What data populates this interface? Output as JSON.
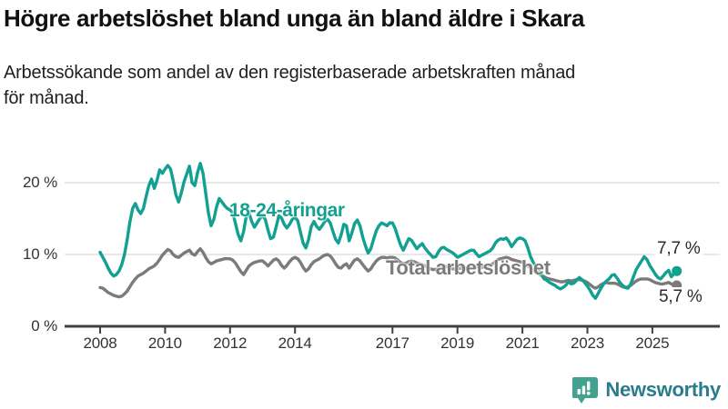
{
  "header": {
    "title": "Högre arbetslöshet bland unga än bland äldre i Skara",
    "subtitle_line1": "Arbetssökande som andel av den registerbaserade arbetskraften månad",
    "subtitle_line2": "för månad."
  },
  "footer": {
    "brand": "Newsworthy",
    "icon": "bar-chart-speech-bubble-icon",
    "icon_color": "#43a18f",
    "text_color": "#2a7b8c"
  },
  "colors": {
    "young_line": "#12a190",
    "total_line": "#7b7b7b",
    "gridline": "#d9d9d9",
    "axis": "#404040",
    "tick_text": "#333333"
  },
  "chart_data": {
    "type": "line",
    "unit": "%",
    "frequency": "monthly",
    "x_start_year": 2008,
    "x_end_label": "Oct 2025",
    "ylim": [
      0,
      24
    ],
    "grid": "horizontal",
    "legend_position": "inline-labels",
    "y_ticks": [
      {
        "value": 0,
        "label": "0 %"
      },
      {
        "value": 10,
        "label": "10 %"
      },
      {
        "value": 20,
        "label": "20 %"
      }
    ],
    "x_ticks": [
      {
        "year": 2008,
        "label": "2008"
      },
      {
        "year": 2010,
        "label": "2010"
      },
      {
        "year": 2012,
        "label": "2012"
      },
      {
        "year": 2014,
        "label": "2014"
      },
      {
        "year": 2017,
        "label": "2017"
      },
      {
        "year": 2019,
        "label": "2019"
      },
      {
        "year": 2021,
        "label": "2021"
      },
      {
        "year": 2023,
        "label": "2023"
      },
      {
        "year": 2025,
        "label": "2025"
      }
    ],
    "series": [
      {
        "name": "18-24-åringar",
        "color": "#12a190",
        "end_label": "7,7 %",
        "end_value": 7.7,
        "values": [
          10.3,
          9.6,
          8.9,
          8.1,
          7.4,
          7.0,
          7.2,
          7.7,
          8.6,
          10.0,
          12.0,
          14.5,
          16.4,
          17.1,
          16.2,
          15.7,
          16.4,
          18.1,
          19.6,
          20.5,
          19.2,
          20.3,
          21.8,
          21.3,
          21.9,
          22.4,
          21.9,
          20.3,
          18.3,
          17.3,
          18.6,
          20.1,
          21.2,
          22.3,
          20.0,
          19.6,
          21.4,
          22.7,
          21.3,
          18.6,
          15.8,
          14.0,
          14.9,
          16.6,
          17.8,
          17.3,
          16.8,
          16.4,
          16.2,
          15.8,
          14.3,
          12.8,
          11.9,
          13.2,
          15.3,
          15.8,
          14.6,
          13.8,
          14.4,
          15.0,
          15.4,
          14.9,
          13.4,
          12.2,
          12.4,
          13.8,
          15.4,
          15.1,
          14.2,
          13.7,
          14.2,
          14.9,
          15.2,
          14.7,
          13.1,
          11.6,
          10.9,
          12.1,
          13.9,
          14.6,
          13.9,
          13.5,
          14.0,
          14.6,
          14.9,
          14.4,
          13.2,
          12.1,
          11.6,
          12.7,
          14.2,
          14.0,
          11.9,
          13.0,
          14.3,
          14.8,
          14.0,
          12.4,
          11.2,
          10.2,
          10.8,
          12.1,
          13.3,
          14.0,
          14.4,
          14.2,
          14.0,
          14.4,
          14.4,
          13.6,
          12.4,
          11.3,
          10.6,
          11.4,
          12.2,
          12.0,
          11.4,
          10.8,
          11.2,
          11.5,
          10.9,
          10.4,
          10.0,
          9.6,
          9.7,
          10.4,
          10.9,
          11.0,
          10.7,
          10.5,
          10.3,
          10.0,
          9.6,
          9.8,
          10.0,
          10.2,
          10.4,
          10.6,
          10.6,
          10.1,
          9.7,
          9.9,
          10.1,
          10.3,
          10.5,
          10.9,
          11.6,
          12.0,
          12.2,
          12.1,
          12.3,
          11.8,
          11.1,
          11.6,
          12.1,
          12.3,
          12.2,
          11.9,
          10.9,
          9.7,
          8.9,
          8.3,
          7.8,
          7.2,
          6.6,
          6.4,
          6.1,
          5.9,
          5.7,
          5.4,
          5.2,
          5.4,
          5.7,
          6.2,
          5.9,
          6.0,
          6.4,
          6.8,
          6.5,
          6.1,
          5.6,
          5.0,
          4.3,
          3.9,
          4.6,
          5.3,
          5.9,
          6.3,
          6.6,
          7.1,
          7.2,
          6.7,
          6.1,
          5.7,
          5.4,
          5.3,
          5.9,
          6.9,
          7.9,
          8.5,
          9.1,
          9.7,
          9.3,
          8.5,
          7.9,
          7.3,
          6.8,
          6.6,
          7.0,
          7.5,
          7.8,
          6.9,
          7.3,
          7.7
        ]
      },
      {
        "name": "Total arbetslöshet",
        "color": "#7b7b7b",
        "end_label": "5,7 %",
        "end_value": 5.7,
        "values": [
          5.4,
          5.3,
          5.0,
          4.7,
          4.5,
          4.3,
          4.2,
          4.1,
          4.2,
          4.5,
          4.9,
          5.5,
          6.1,
          6.6,
          7.0,
          7.2,
          7.4,
          7.7,
          8.0,
          8.2,
          8.4,
          8.8,
          9.3,
          9.9,
          10.3,
          10.7,
          10.5,
          10.0,
          9.7,
          9.6,
          9.9,
          10.2,
          10.4,
          10.6,
          10.1,
          9.9,
          10.4,
          10.8,
          10.3,
          9.6,
          9.0,
          8.7,
          8.9,
          9.1,
          9.2,
          9.3,
          9.4,
          9.4,
          9.4,
          9.2,
          8.8,
          8.2,
          7.6,
          7.2,
          7.8,
          8.4,
          8.7,
          8.9,
          9.0,
          9.1,
          9.1,
          8.8,
          8.4,
          8.8,
          9.2,
          9.4,
          9.1,
          8.5,
          8.1,
          8.5,
          9.0,
          9.4,
          9.6,
          9.4,
          8.9,
          8.2,
          7.7,
          8.0,
          8.6,
          9.0,
          9.2,
          9.4,
          9.7,
          9.9,
          10.0,
          9.8,
          9.3,
          8.7,
          8.2,
          8.1,
          8.5,
          8.7,
          8.1,
          8.7,
          9.2,
          9.4,
          9.1,
          8.6,
          8.1,
          7.7,
          8.0,
          8.6,
          9.1,
          9.4,
          9.6,
          9.6,
          9.5,
          9.6,
          9.6,
          9.5,
          9.2,
          8.9,
          8.7,
          8.8,
          9.0,
          9.1,
          9.0,
          8.8,
          8.7,
          8.6,
          8.4,
          8.2,
          8.0,
          7.9,
          7.9,
          8.1,
          8.3,
          8.4,
          8.3,
          8.1,
          8.0,
          8.0,
          8.0,
          8.1,
          8.1,
          8.1,
          8.2,
          8.3,
          8.4,
          8.3,
          8.2,
          8.2,
          8.3,
          8.4,
          8.5,
          8.7,
          9.0,
          9.3,
          9.4,
          9.5,
          9.6,
          9.5,
          9.3,
          9.2,
          9.1,
          9.0,
          8.9,
          8.7,
          8.4,
          8.1,
          7.8,
          7.5,
          7.3,
          7.1,
          6.9,
          6.7,
          6.6,
          6.5,
          6.4,
          6.3,
          6.2,
          6.2,
          6.3,
          6.4,
          6.3,
          6.4,
          6.5,
          6.5,
          6.4,
          6.3,
          6.1,
          5.8,
          5.5,
          5.3,
          5.5,
          5.8,
          6.0,
          6.1,
          6.0,
          6.0,
          6.0,
          5.9,
          5.7,
          5.5,
          5.4,
          5.5,
          5.7,
          6.0,
          6.3,
          6.5,
          6.6,
          6.6,
          6.6,
          6.5,
          6.3,
          6.1,
          6.0,
          5.9,
          5.9,
          6.0,
          6.1,
          5.9,
          5.8,
          5.7
        ]
      }
    ]
  }
}
